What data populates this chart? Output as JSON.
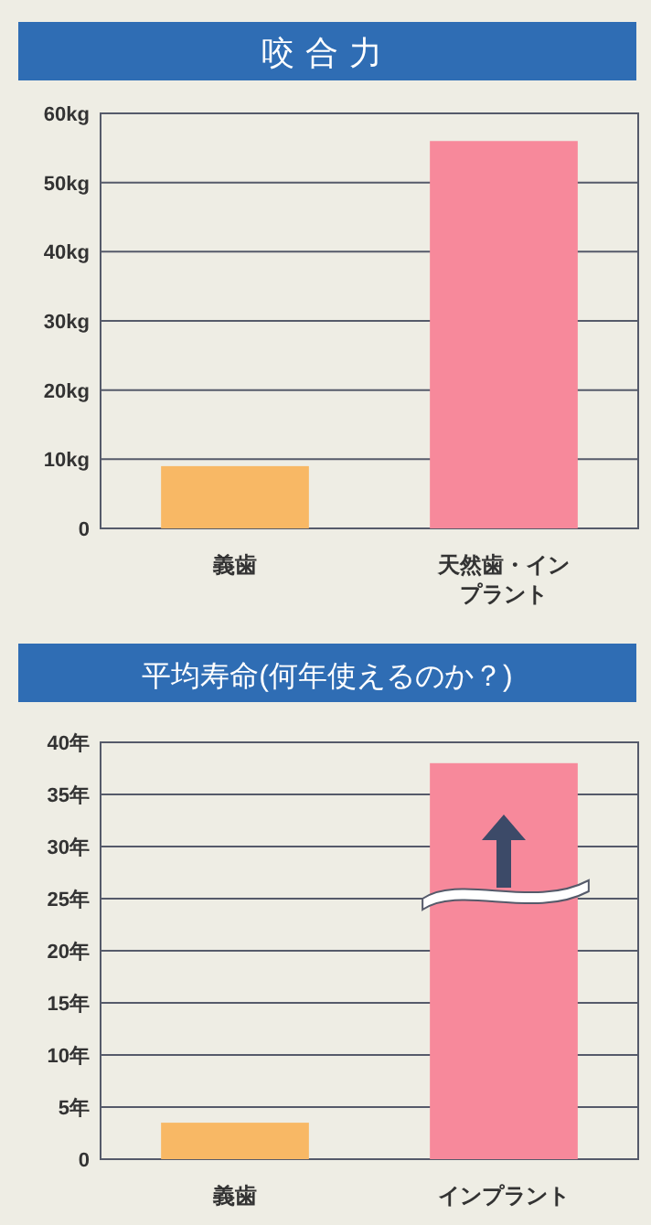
{
  "chart_data": [
    {
      "type": "bar",
      "title": "咬合力",
      "categories": [
        "義歯",
        "天然歯・インプラント"
      ],
      "values": [
        9,
        56
      ],
      "colors": [
        "#f8b865",
        "#f7899b"
      ],
      "ylim": [
        0,
        60
      ],
      "yticks": [
        0,
        {
          "value": 10,
          "label": "10kg"
        },
        {
          "value": 20,
          "label": "20kg"
        },
        {
          "value": 30,
          "label": "30kg"
        },
        {
          "value": 40,
          "label": "40kg"
        },
        {
          "value": 50,
          "label": "50kg"
        },
        {
          "value": 60,
          "label": "60kg"
        }
      ],
      "grid": "y"
    },
    {
      "type": "bar",
      "title": "平均寿命(何年使えるのか？)",
      "categories": [
        "義歯",
        "インプラント"
      ],
      "values": [
        3.5,
        38
      ],
      "colors": [
        "#f8b865",
        "#f7899b"
      ],
      "ylim": [
        0,
        40
      ],
      "yticks": [
        0,
        {
          "value": 5,
          "label": "5年"
        },
        {
          "value": 10,
          "label": "10年"
        },
        {
          "value": 15,
          "label": "15年"
        },
        {
          "value": 20,
          "label": "20年"
        },
        {
          "value": 25,
          "label": "25年"
        },
        {
          "value": 30,
          "label": "30年"
        },
        {
          "value": 35,
          "label": "35年"
        },
        {
          "value": 40,
          "label": "40年"
        }
      ],
      "grid": "y"
    }
  ]
}
